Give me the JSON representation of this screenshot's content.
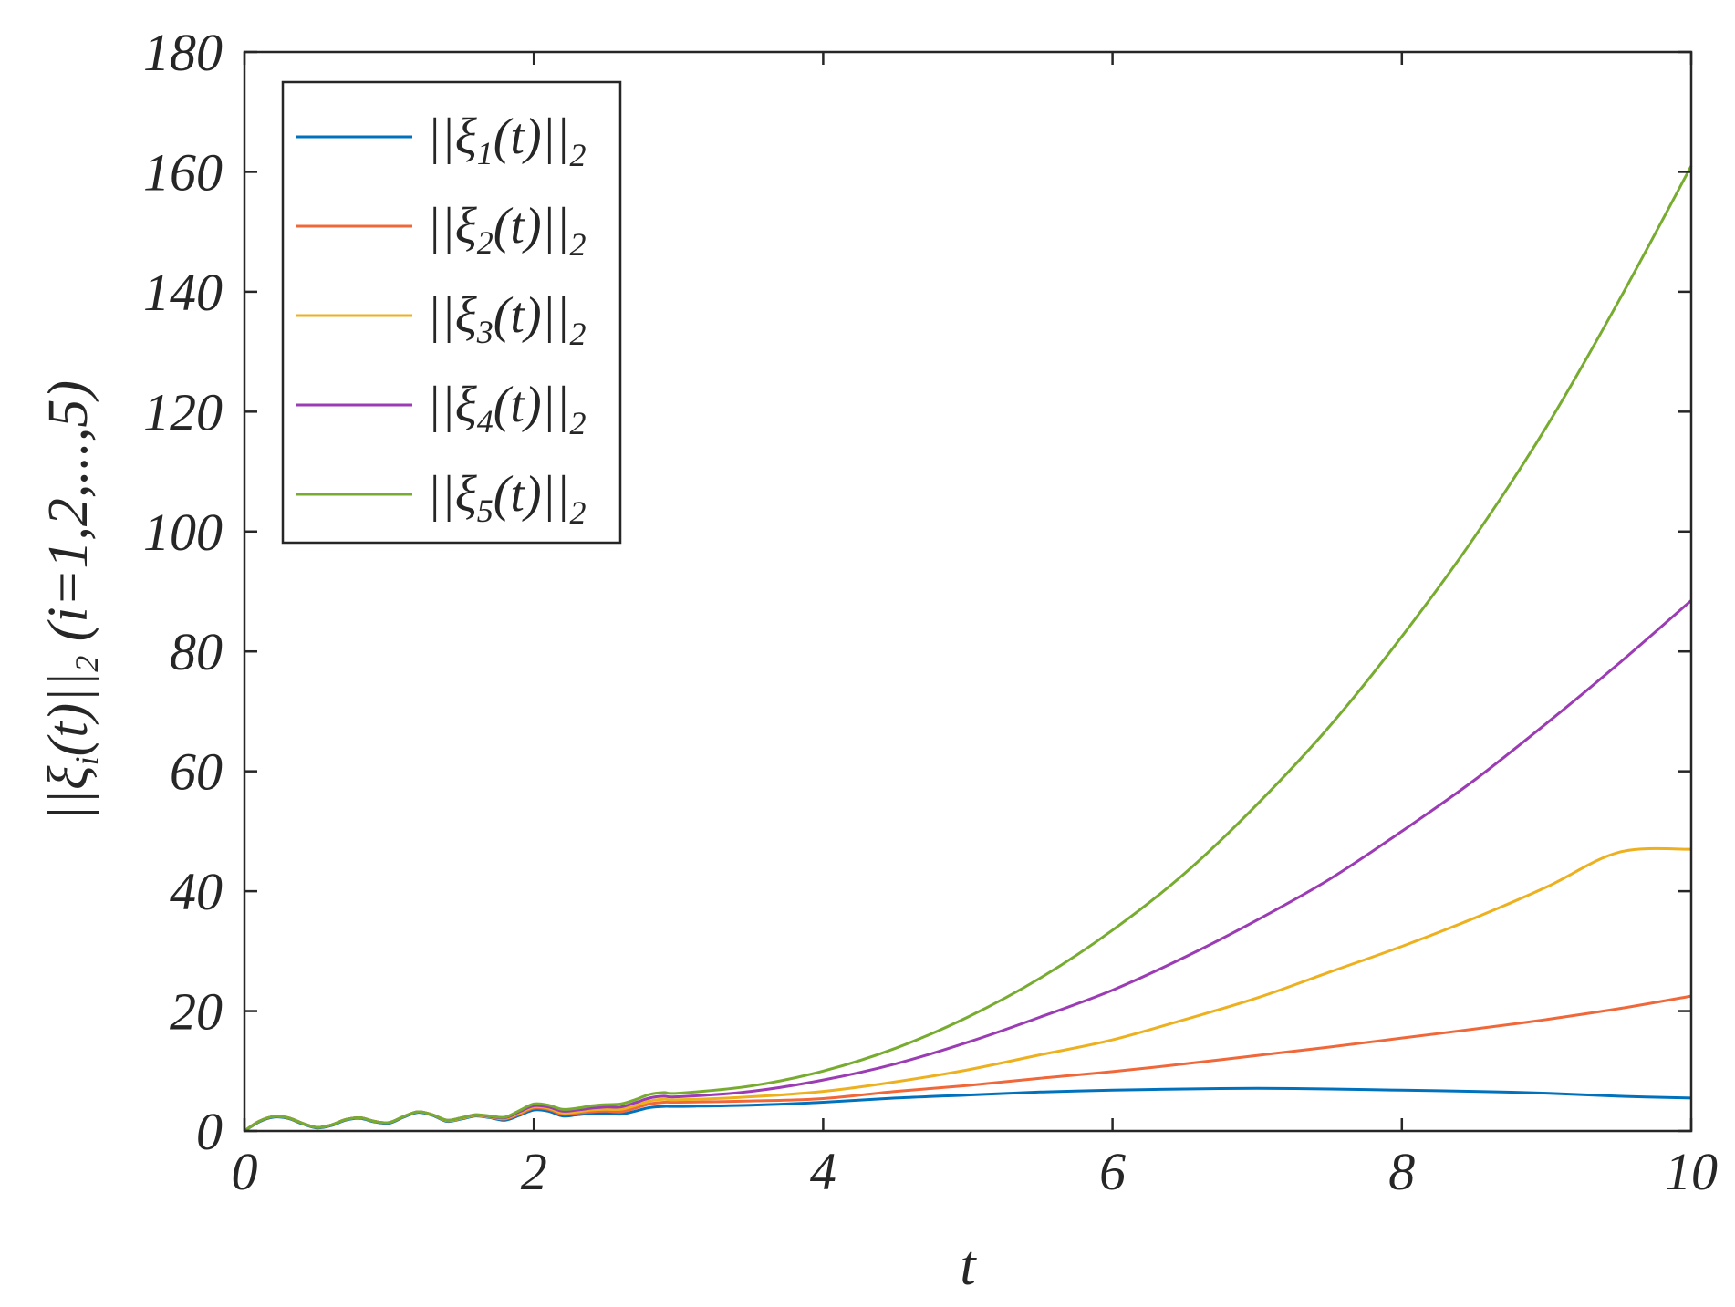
{
  "chart_data": {
    "type": "line",
    "xlabel": "t",
    "ylabel": {
      "prefix": "||ξ",
      "sub1": "i",
      "mid": "(t)||",
      "sub2": "2",
      "suffix": " (i=1,2,...,5)"
    },
    "xlim": [
      0,
      10
    ],
    "ylim": [
      0,
      180
    ],
    "xticks": [
      0,
      2,
      4,
      6,
      8,
      10
    ],
    "yticks": [
      0,
      20,
      40,
      60,
      80,
      100,
      120,
      140,
      160,
      180
    ],
    "grid": false,
    "legend_position": "top-left",
    "x": [
      0,
      0.1,
      0.2,
      0.3,
      0.4,
      0.5,
      0.6,
      0.7,
      0.8,
      0.9,
      1.0,
      1.1,
      1.2,
      1.3,
      1.4,
      1.5,
      1.6,
      1.7,
      1.8,
      1.9,
      2.0,
      2.1,
      2.2,
      2.3,
      2.4,
      2.5,
      2.6,
      2.7,
      2.8,
      2.9,
      3.0,
      3.5,
      4.0,
      4.5,
      5.0,
      5.5,
      6.0,
      6.5,
      7.0,
      7.5,
      8.0,
      8.5,
      9.0,
      9.5,
      10.0
    ],
    "series": [
      {
        "legend": {
          "pre": "||ξ",
          "sub": "1",
          "mid": "(t)||",
          "sub2": "2"
        },
        "color": "#0072BD",
        "values": [
          0,
          1.5,
          2.3,
          2.1,
          1.2,
          0.5,
          0.9,
          1.8,
          2.1,
          1.5,
          1.3,
          2.3,
          3.1,
          2.6,
          1.6,
          2.0,
          2.5,
          2.2,
          1.8,
          2.6,
          3.5,
          3.3,
          2.5,
          2.7,
          2.9,
          2.9,
          2.8,
          3.3,
          3.9,
          4.1,
          4.1,
          4.3,
          4.8,
          5.5,
          6.0,
          6.5,
          6.8,
          7.0,
          7.1,
          7.0,
          6.8,
          6.6,
          6.3,
          5.8,
          5.5
        ]
      },
      {
        "legend": {
          "pre": "||ξ",
          "sub": "2",
          "mid": "(t)||",
          "sub2": "2"
        },
        "color": "#F0683A",
        "values": [
          0,
          1.6,
          2.4,
          2.2,
          1.3,
          0.6,
          1.0,
          1.9,
          2.2,
          1.6,
          1.4,
          2.4,
          3.2,
          2.7,
          1.7,
          2.1,
          2.6,
          2.3,
          2.0,
          2.8,
          3.8,
          3.6,
          2.8,
          3.0,
          3.2,
          3.3,
          3.2,
          3.8,
          4.5,
          4.8,
          4.8,
          5.0,
          5.4,
          6.6,
          7.6,
          8.8,
          9.9,
          11.2,
          12.6,
          14.0,
          15.5,
          17.0,
          18.6,
          20.4,
          22.5
        ]
      },
      {
        "legend": {
          "pre": "||ξ",
          "sub": "3",
          "mid": "(t)||",
          "sub2": "2"
        },
        "color": "#EDB120",
        "values": [
          0,
          1.6,
          2.4,
          2.2,
          1.3,
          0.6,
          1.0,
          1.9,
          2.2,
          1.6,
          1.4,
          2.4,
          3.2,
          2.7,
          1.7,
          2.1,
          2.6,
          2.3,
          2.1,
          3.0,
          4.0,
          3.8,
          3.0,
          3.2,
          3.5,
          3.6,
          3.6,
          4.2,
          5.0,
          5.3,
          5.2,
          5.7,
          6.6,
          8.2,
          10.2,
          12.7,
          15.2,
          18.6,
          22.2,
          26.5,
          30.8,
          35.5,
          40.7,
          46.5,
          47.0
        ]
      },
      {
        "legend": {
          "pre": "||ξ",
          "sub": "4",
          "mid": "(t)||",
          "sub2": "2"
        },
        "color": "#9B3CB4",
        "values": [
          0,
          1.6,
          2.4,
          2.2,
          1.3,
          0.6,
          1.0,
          1.9,
          2.2,
          1.6,
          1.4,
          2.4,
          3.2,
          2.7,
          1.8,
          2.2,
          2.7,
          2.4,
          2.2,
          3.2,
          4.2,
          4.0,
          3.3,
          3.5,
          3.8,
          4.0,
          4.0,
          4.7,
          5.5,
          5.8,
          5.7,
          6.6,
          8.5,
          11.2,
          14.8,
          19.0,
          23.5,
          29.0,
          35.2,
          42.0,
          50.0,
          58.5,
          68.0,
          78.0,
          88.5
        ]
      },
      {
        "legend": {
          "pre": "||ξ",
          "sub": "5",
          "mid": "(t)||",
          "sub2": "2"
        },
        "color": "#77AC30",
        "values": [
          0,
          1.6,
          2.4,
          2.2,
          1.3,
          0.6,
          1.0,
          1.9,
          2.2,
          1.6,
          1.4,
          2.4,
          3.2,
          2.7,
          1.8,
          2.2,
          2.7,
          2.5,
          2.3,
          3.4,
          4.5,
          4.3,
          3.6,
          3.8,
          4.2,
          4.4,
          4.5,
          5.2,
          6.1,
          6.4,
          6.3,
          7.5,
          10.0,
          13.8,
          19.0,
          25.5,
          33.5,
          43.0,
          54.5,
          67.5,
          82.5,
          99.0,
          117.5,
          138.5,
          161.0
        ]
      }
    ]
  }
}
